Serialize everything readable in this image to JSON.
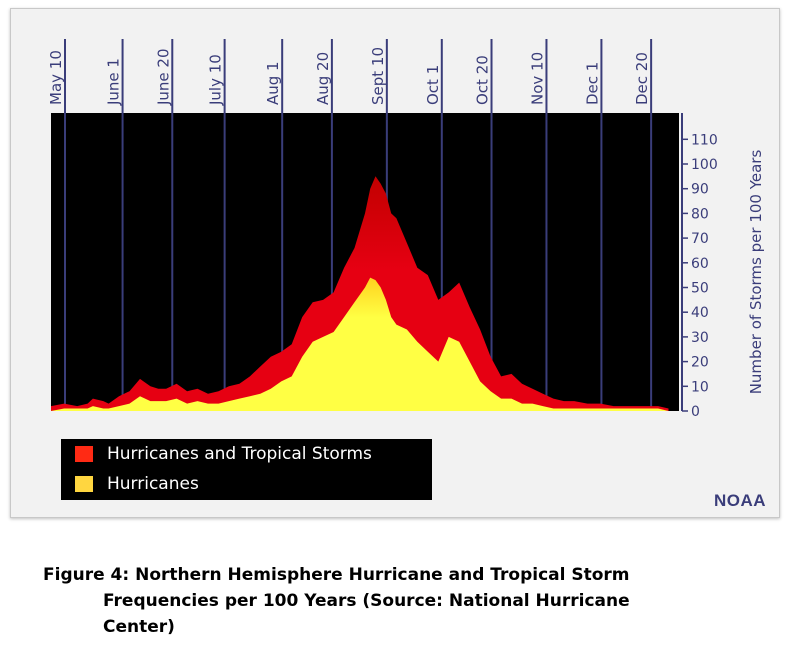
{
  "legend": {
    "items": [
      {
        "label": "Hurricanes and Tropical Storms",
        "color": "#ff2a14"
      },
      {
        "label": "Hurricanes",
        "color": "#ffd640"
      }
    ]
  },
  "credit": "NOAA",
  "caption": {
    "line1": "Figure 4: Northern Hemisphere Hurricane and Tropical Storm",
    "line2": "Frequencies per 100 Years (Source:  National Hurricane",
    "line3": "Center)"
  },
  "colors": {
    "plot_background": "#000000",
    "gridline": "#3a3d7a",
    "axis_text": "#3a3d7a",
    "total_outer": "#e60012",
    "total_inner": "#c20000",
    "hurricanes_outer": "#ffd21e",
    "hurricanes_inner": "#ffff44"
  },
  "chart_data": {
    "type": "area",
    "title": "",
    "xlabel": "",
    "ylabel": "Number of Storms per 100 Years",
    "ylim": [
      0,
      120
    ],
    "yticks": [
      0,
      10,
      20,
      30,
      40,
      50,
      60,
      70,
      80,
      90,
      100,
      110
    ],
    "xlim": [
      0,
      240
    ],
    "date_ticks": [
      {
        "label": "May 10",
        "day": 0
      },
      {
        "label": "June 1",
        "day": 22
      },
      {
        "label": "June 20",
        "day": 41
      },
      {
        "label": "July 10",
        "day": 61
      },
      {
        "label": "Aug 1",
        "day": 83
      },
      {
        "label": "Aug 20",
        "day": 102
      },
      {
        "label": "Sept 10",
        "day": 123
      },
      {
        "label": "Oct 1",
        "day": 144
      },
      {
        "label": "Oct 20",
        "day": 163
      },
      {
        "label": "Nov 10",
        "day": 184
      },
      {
        "label": "Dec 1",
        "day": 205
      },
      {
        "label": "Dec 20",
        "day": 224
      }
    ],
    "x_days": [
      0,
      5,
      10,
      14,
      16,
      20,
      22,
      26,
      30,
      34,
      38,
      41,
      44,
      48,
      52,
      56,
      60,
      64,
      68,
      72,
      76,
      80,
      84,
      88,
      92,
      96,
      100,
      104,
      108,
      112,
      116,
      120,
      122,
      124,
      126,
      128,
      130,
      132,
      136,
      140,
      144,
      148,
      152,
      156,
      160,
      164,
      168,
      172,
      176,
      180,
      184,
      188,
      192,
      196,
      200,
      205,
      210,
      215,
      220,
      224,
      228,
      232,
      236
    ],
    "series": [
      {
        "name": "Hurricanes and Tropical Storms",
        "values": [
          2,
          3,
          2,
          3,
          5,
          4,
          3,
          6,
          8,
          13,
          10,
          9,
          9,
          11,
          8,
          9,
          7,
          8,
          10,
          11,
          14,
          18,
          22,
          24,
          27,
          38,
          44,
          45,
          48,
          58,
          66,
          80,
          90,
          95,
          92,
          88,
          80,
          78,
          68,
          58,
          55,
          45,
          48,
          52,
          42,
          33,
          22,
          14,
          15,
          11,
          9,
          7,
          5,
          4,
          4,
          3,
          3,
          2,
          2,
          2,
          2,
          2,
          1
        ]
      },
      {
        "name": "Hurricanes",
        "values": [
          0,
          1,
          1,
          1,
          2,
          1,
          1,
          2,
          3,
          6,
          4,
          4,
          4,
          5,
          3,
          4,
          3,
          3,
          4,
          5,
          6,
          7,
          9,
          12,
          14,
          22,
          28,
          30,
          32,
          38,
          44,
          50,
          54,
          53,
          50,
          45,
          38,
          35,
          33,
          28,
          24,
          20,
          30,
          28,
          20,
          12,
          8,
          5,
          5,
          3,
          3,
          2,
          1,
          1,
          1,
          1,
          1,
          1,
          1,
          1,
          1,
          1,
          0
        ]
      }
    ],
    "grid": true,
    "legend_position": "bottom-left"
  }
}
